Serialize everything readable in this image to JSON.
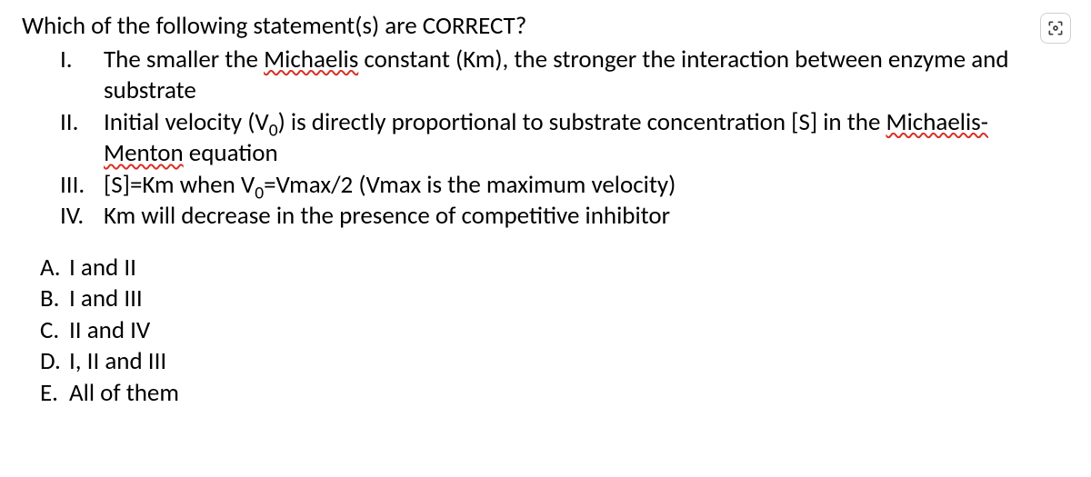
{
  "question": {
    "stem": "Which of the following statement(s) are CORRECT?",
    "romans": [
      {
        "label": "I.",
        "html": "The smaller the <span class='spell'>Michaelis</span> constant (Km), the stronger the interaction between enzyme and substrate"
      },
      {
        "label": "II.",
        "html": "Initial velocity (V<sub>0</sub>) is directly proportional to substrate concentration [S] in the <span class='spell'>Michaelis-Menton</span> equation"
      },
      {
        "label": "III.",
        "html": "[S]=Km when V<sub>0</sub>=Vmax/2  (Vmax is the maximum velocity)"
      },
      {
        "label": "IV.",
        "html": "Km will decrease in the presence of competitive inhibitor"
      }
    ],
    "answers": [
      {
        "label": "A.",
        "text": "I and II"
      },
      {
        "label": "B.",
        "text": "I and III"
      },
      {
        "label": "C.",
        "text": "II and IV"
      },
      {
        "label": "D.",
        "text": "I, II and III"
      },
      {
        "label": "E.",
        "text": "All of them"
      }
    ]
  },
  "icons": {
    "lens": "lens-icon"
  },
  "colors": {
    "text": "#000000",
    "spell_underline": "#d93025",
    "background": "#ffffff",
    "icon_border": "#d0d0d0",
    "icon_stroke": "#3c4043"
  }
}
